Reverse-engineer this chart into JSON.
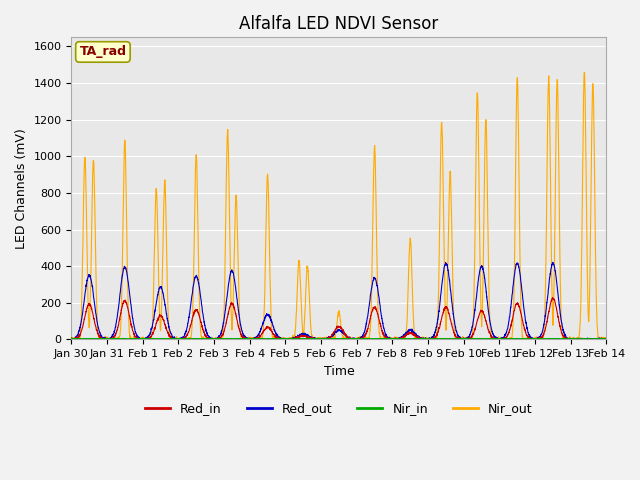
{
  "title": "Alfalfa LED NDVI Sensor",
  "xlabel": "Time",
  "ylabel": "LED Channels (mV)",
  "ylim": [
    0,
    1650
  ],
  "yticks": [
    0,
    200,
    400,
    600,
    800,
    1000,
    1200,
    1400,
    1600
  ],
  "legend_labels": [
    "Red_in",
    "Red_out",
    "Nir_in",
    "Nir_out"
  ],
  "legend_colors": [
    "#cc0000",
    "#0000cc",
    "#00aa00",
    "#ffaa00"
  ],
  "annotation_text": "TA_rad",
  "annotation_color": "#880000",
  "annotation_bg": "#ffffcc",
  "axes_bg": "#e8e8e8",
  "fig_bg": "#f2f2f2",
  "title_fontsize": 12,
  "label_fontsize": 9,
  "tick_fontsize": 8,
  "days": [
    "Jan 30",
    "Jan 31",
    "Feb 1",
    "Feb 2",
    "Feb 3",
    "Feb 4",
    "Feb 5",
    "Feb 6",
    "Feb 7",
    "Feb 8",
    "Feb 9",
    "Feb 10",
    "Feb 11",
    "Feb 12",
    "Feb 13",
    "Feb 14"
  ],
  "nir_out_peaks": [
    1000,
    1080,
    820,
    1010,
    1140,
    900,
    430,
    150,
    1050,
    550,
    1190,
    1350,
    1430,
    1430,
    1460
  ],
  "nir_out_secondary": [
    980,
    0,
    860,
    0,
    780,
    0,
    400,
    0,
    0,
    0,
    920,
    1200,
    0,
    1420,
    1400
  ],
  "red_in_peaks": [
    190,
    210,
    130,
    160,
    195,
    65,
    20,
    70,
    175,
    35,
    175,
    155,
    195,
    225,
    0
  ],
  "red_out_peaks": [
    350,
    395,
    285,
    345,
    375,
    135,
    30,
    50,
    335,
    50,
    415,
    400,
    415,
    415,
    0
  ],
  "nir_in_peaks": [
    12,
    12,
    12,
    12,
    12,
    12,
    12,
    12,
    12,
    12,
    12,
    12,
    12,
    12,
    12
  ]
}
